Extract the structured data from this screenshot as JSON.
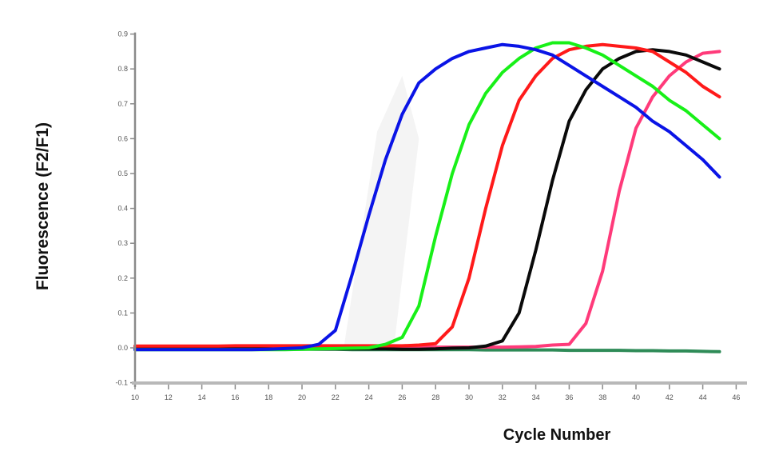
{
  "chart_data": {
    "type": "line",
    "title": "",
    "xlabel": "Cycle Number",
    "ylabel": "Fluorescence (F2/F1)",
    "xlim": [
      10,
      46
    ],
    "ylim": [
      -0.1,
      0.9
    ],
    "xticks": [
      10,
      12,
      14,
      16,
      18,
      20,
      22,
      24,
      26,
      28,
      30,
      32,
      34,
      36,
      38,
      40,
      42,
      44,
      46
    ],
    "yticks": [
      -0.1,
      0.0,
      0.1,
      0.2,
      0.3,
      0.4,
      0.5,
      0.6,
      0.7,
      0.8,
      0.9
    ],
    "ytick_labels": [
      "-0.1",
      "0.0",
      "0.1",
      "0.2",
      "0.3",
      "0.4",
      "0.5",
      "0.6",
      "0.7",
      "0.8",
      "0.9"
    ],
    "grid": false,
    "legend": null,
    "x": [
      10,
      11,
      12,
      13,
      14,
      15,
      16,
      17,
      18,
      19,
      20,
      21,
      22,
      23,
      24,
      25,
      26,
      27,
      28,
      29,
      30,
      31,
      32,
      33,
      34,
      35,
      36,
      37,
      38,
      39,
      40,
      41,
      42,
      43,
      44,
      45
    ],
    "series": [
      {
        "name": "blue",
        "color": "#0a14e6",
        "values": [
          -0.005,
          -0.005,
          -0.005,
          -0.005,
          -0.005,
          -0.005,
          -0.005,
          -0.005,
          -0.004,
          -0.002,
          0.0,
          0.01,
          0.05,
          0.21,
          0.38,
          0.54,
          0.67,
          0.76,
          0.8,
          0.83,
          0.85,
          0.86,
          0.87,
          0.865,
          0.855,
          0.84,
          0.81,
          0.78,
          0.75,
          0.72,
          0.69,
          0.65,
          0.62,
          0.58,
          0.54,
          0.49
        ]
      },
      {
        "name": "green",
        "color": "#18f018",
        "values": [
          -0.005,
          -0.005,
          -0.005,
          -0.005,
          -0.005,
          -0.005,
          -0.005,
          -0.005,
          -0.005,
          -0.005,
          -0.004,
          -0.003,
          -0.002,
          -0.001,
          0.0,
          0.01,
          0.03,
          0.12,
          0.32,
          0.5,
          0.64,
          0.73,
          0.79,
          0.83,
          0.86,
          0.875,
          0.875,
          0.86,
          0.84,
          0.81,
          0.78,
          0.75,
          0.71,
          0.68,
          0.64,
          0.6
        ]
      },
      {
        "name": "red",
        "color": "#ff1a1a",
        "values": [
          0.005,
          0.005,
          0.005,
          0.005,
          0.005,
          0.005,
          0.006,
          0.006,
          0.006,
          0.006,
          0.006,
          0.006,
          0.006,
          0.006,
          0.006,
          0.006,
          0.006,
          0.008,
          0.012,
          0.06,
          0.2,
          0.4,
          0.58,
          0.71,
          0.78,
          0.83,
          0.855,
          0.865,
          0.87,
          0.865,
          0.86,
          0.85,
          0.82,
          0.79,
          0.75,
          0.72
        ]
      },
      {
        "name": "black",
        "color": "#0a0a0a",
        "values": [
          -0.003,
          -0.003,
          -0.003,
          -0.003,
          -0.003,
          -0.003,
          -0.003,
          -0.003,
          -0.003,
          -0.003,
          -0.003,
          -0.003,
          -0.003,
          -0.003,
          -0.003,
          -0.003,
          -0.004,
          -0.004,
          -0.003,
          -0.001,
          0.0,
          0.005,
          0.02,
          0.1,
          0.28,
          0.48,
          0.65,
          0.74,
          0.8,
          0.83,
          0.85,
          0.855,
          0.85,
          0.84,
          0.82,
          0.8
        ]
      },
      {
        "name": "pink",
        "color": "#ff3a7a",
        "values": [
          0.002,
          0.002,
          0.002,
          0.002,
          0.002,
          0.002,
          0.002,
          0.002,
          0.002,
          0.002,
          0.002,
          0.002,
          0.002,
          0.002,
          0.002,
          0.002,
          0.002,
          0.002,
          0.002,
          0.002,
          0.002,
          0.002,
          0.002,
          0.003,
          0.004,
          0.008,
          0.01,
          0.07,
          0.22,
          0.45,
          0.63,
          0.72,
          0.78,
          0.82,
          0.845,
          0.85
        ]
      },
      {
        "name": "dark green (baseline)",
        "color": "#2e8b57",
        "values": [
          -0.004,
          -0.004,
          -0.004,
          -0.004,
          -0.004,
          -0.004,
          -0.004,
          -0.004,
          -0.004,
          -0.004,
          -0.004,
          -0.004,
          -0.004,
          -0.005,
          -0.005,
          -0.005,
          -0.005,
          -0.005,
          -0.005,
          -0.005,
          -0.005,
          -0.006,
          -0.006,
          -0.006,
          -0.006,
          -0.006,
          -0.007,
          -0.007,
          -0.007,
          -0.007,
          -0.008,
          -0.008,
          -0.009,
          -0.009,
          -0.01,
          -0.011
        ]
      }
    ]
  },
  "axes": {
    "x_label": "Cycle Number",
    "y_label": "Fluorescence (F2/F1)"
  }
}
